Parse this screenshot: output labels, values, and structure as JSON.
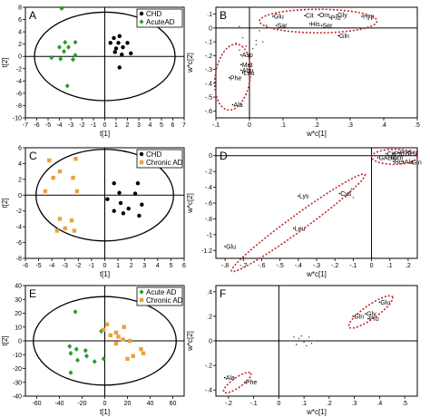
{
  "chart_data": [
    {
      "panel_label": "A",
      "type": "scatter",
      "xlabel": "t[1]",
      "ylabel": "t[2]",
      "xlim": [
        -7,
        7
      ],
      "ylim": [
        -10,
        8
      ],
      "xticks": [
        -7,
        -6,
        -5,
        -4,
        -3,
        -2,
        -1,
        0,
        1,
        2,
        3,
        4,
        5,
        6,
        7
      ],
      "yticks": [
        -10,
        -8,
        -6,
        -4,
        -2,
        0,
        2,
        4,
        6,
        8
      ],
      "ellipse": {
        "rx": 6.2,
        "ry": 7.2
      },
      "legend": "top-right",
      "series": [
        {
          "name": "CHD",
          "marker": "circle",
          "color": "#000000",
          "points": [
            [
              0.8,
              3
            ],
            [
              1.3,
              3.3
            ],
            [
              0.5,
              2.2
            ],
            [
              1.2,
              2.2
            ],
            [
              2,
              2.2
            ],
            [
              1,
              1.3
            ],
            [
              1.6,
              1.5
            ],
            [
              0.9,
              0.7
            ],
            [
              1.5,
              0.3
            ],
            [
              2.3,
              0.5
            ],
            [
              1.3,
              -1.8
            ]
          ]
        },
        {
          "name": "AcuteAD",
          "marker": "diamond",
          "color": "#2e9a2e",
          "points": [
            [
              -3.8,
              7.8
            ],
            [
              -3.5,
              2.3
            ],
            [
              -2.6,
              2.3
            ],
            [
              -4,
              1.5
            ],
            [
              -3.2,
              1.5
            ],
            [
              -3.6,
              0.8
            ],
            [
              -2.6,
              0.2
            ],
            [
              -2.8,
              -0.5
            ],
            [
              -3.9,
              -0.4
            ],
            [
              -4.7,
              -0.2
            ],
            [
              -3.3,
              -4.8
            ]
          ]
        }
      ]
    },
    {
      "panel_label": "B",
      "type": "scatter",
      "xlabel": "w*c[1]",
      "ylabel": "w*c[2]",
      "xlim": [
        -0.1,
        0.5
      ],
      "ylim": [
        -0.65,
        0.15
      ],
      "xticks": [
        -0.1,
        0,
        0.1,
        0.2,
        0.3,
        0.4,
        0.5
      ],
      "yticks": [
        -0.6,
        -0.5,
        -0.4,
        -0.3,
        -0.2,
        -0.1,
        0,
        0.1
      ],
      "labels": [
        {
          "text": "Glu",
          "x": 0.07,
          "y": 0.085
        },
        {
          "text": "Cit",
          "x": 0.165,
          "y": 0.09
        },
        {
          "text": "Orn",
          "x": 0.205,
          "y": 0.095
        },
        {
          "text": "Gly",
          "x": 0.26,
          "y": 0.095
        },
        {
          "text": "Hyp",
          "x": 0.335,
          "y": 0.085
        },
        {
          "text": "Pro",
          "x": 0.24,
          "y": 0.075
        },
        {
          "text": "His",
          "x": 0.18,
          "y": 0.03
        },
        {
          "text": "Sar",
          "x": 0.08,
          "y": 0.018
        },
        {
          "text": "Ser",
          "x": 0.215,
          "y": 0.018
        },
        {
          "text": "Gln",
          "x": 0.265,
          "y": -0.055
        },
        {
          "text": "Asp",
          "x": -0.025,
          "y": -0.195
        },
        {
          "text": "Met",
          "x": -0.025,
          "y": -0.265
        },
        {
          "text": "Abu",
          "x": -0.025,
          "y": -0.305
        },
        {
          "text": "Leu",
          "x": -0.02,
          "y": -0.325
        },
        {
          "text": "Phe",
          "x": -0.06,
          "y": -0.36
        },
        {
          "text": "Ala",
          "x": -0.05,
          "y": -0.555
        }
      ],
      "extra_points": [
        [
          -0.03,
          0.01
        ],
        [
          0.01,
          0.0
        ],
        [
          0.03,
          -0.02
        ],
        [
          0.0,
          -0.05
        ],
        [
          -0.02,
          -0.07
        ],
        [
          0.02,
          -0.09
        ],
        [
          -0.04,
          -0.11
        ],
        [
          -0.01,
          -0.13
        ],
        [
          0.01,
          -0.15
        ],
        [
          -0.03,
          -0.16
        ],
        [
          0.02,
          -0.12
        ],
        [
          0.04,
          -0.1
        ],
        [
          0.05,
          0.02
        ]
      ],
      "ellipses": [
        {
          "cx": 0.205,
          "cy": 0.05,
          "rx": 0.175,
          "ry": 0.085,
          "angle": 0
        },
        {
          "cx": -0.05,
          "cy": -0.355,
          "rx": 0.052,
          "ry": 0.24,
          "angle": 8
        }
      ]
    },
    {
      "panel_label": "C",
      "type": "scatter",
      "xlabel": "t[1]",
      "ylabel": "t[2]",
      "xlim": [
        -6,
        6
      ],
      "ylim": [
        -8,
        6
      ],
      "xticks": [
        -6,
        -5,
        -4,
        -3,
        -2,
        -1,
        0,
        1,
        2,
        3,
        4,
        5,
        6
      ],
      "yticks": [
        -8,
        -6,
        -4,
        -2,
        0,
        2,
        4,
        6
      ],
      "ellipse": {
        "rx": 5.2,
        "ry": 5.8
      },
      "legend": "top-right",
      "series": [
        {
          "name": "CHD",
          "marker": "circle",
          "color": "#000000",
          "points": [
            [
              0.7,
              1.5
            ],
            [
              2.5,
              1.5
            ],
            [
              1.1,
              0.3
            ],
            [
              2.3,
              0.2
            ],
            [
              0.2,
              -0.5
            ],
            [
              1.2,
              -1
            ],
            [
              2.8,
              -1.2
            ],
            [
              1.8,
              -1.7
            ],
            [
              0.7,
              -2
            ],
            [
              1.4,
              -2.3
            ],
            [
              2.6,
              -2.6
            ]
          ]
        },
        {
          "name": "Chronic AD",
          "marker": "square",
          "color": "#e8a33a",
          "points": [
            [
              -4.2,
              4.4
            ],
            [
              -2.2,
              4.6
            ],
            [
              -3.4,
              3
            ],
            [
              -3.9,
              2.2
            ],
            [
              -2.4,
              2.2
            ],
            [
              -4.5,
              0.5
            ],
            [
              -2.1,
              0.5
            ],
            [
              -3.4,
              -3
            ],
            [
              -2.5,
              -3.2
            ],
            [
              -3,
              -4.2
            ],
            [
              -2.3,
              -4.5
            ],
            [
              -3.6,
              -4.5
            ]
          ]
        }
      ]
    },
    {
      "panel_label": "D",
      "type": "scatter",
      "xlabel": "w*c[1]",
      "ylabel": "w*c[2]",
      "xlim": [
        -0.85,
        0.25
      ],
      "ylim": [
        -1.3,
        0.1
      ],
      "xticks": [
        -0.8,
        -0.7,
        -0.6,
        -0.5,
        -0.4,
        -0.3,
        -0.2,
        -0.1,
        0,
        0.1,
        0.2
      ],
      "yticks": [
        -1.2,
        -1,
        -0.8,
        -0.6,
        -0.4,
        -0.2,
        0
      ],
      "labels": [
        {
          "text": "Hyp",
          "x": 0.15,
          "y": 0.04
        },
        {
          "text": "Ser",
          "x": 0.195,
          "y": 0.04
        },
        {
          "text": "Cit",
          "x": 0.08,
          "y": 0.025
        },
        {
          "text": "Pro",
          "x": 0.12,
          "y": 0.025
        },
        {
          "text": "GABA",
          "x": 0.035,
          "y": -0.025
        },
        {
          "text": "Orn",
          "x": 0.11,
          "y": -0.025
        },
        {
          "text": "His",
          "x": 0.12,
          "y": -0.075
        },
        {
          "text": "Ala",
          "x": 0.175,
          "y": -0.075
        },
        {
          "text": "Gln",
          "x": 0.215,
          "y": -0.085
        },
        {
          "text": "Cys",
          "x": -0.175,
          "y": -0.48
        },
        {
          "text": "Lys",
          "x": -0.4,
          "y": -0.51
        },
        {
          "text": "Leu",
          "x": -0.425,
          "y": -0.92
        },
        {
          "text": "Glu",
          "x": -0.8,
          "y": -1.15
        }
      ],
      "extra_points": [
        [
          -0.11,
          -0.42
        ],
        [
          -0.12,
          -0.46
        ],
        [
          -0.13,
          -0.5
        ],
        [
          -0.1,
          -0.53
        ]
      ],
      "ellipses": [
        {
          "cx": 0.125,
          "cy": -0.015,
          "rx": 0.125,
          "ry": 0.095,
          "angle": 0
        },
        {
          "cx": -0.4,
          "cy": -0.85,
          "rx": 0.45,
          "ry": 0.1,
          "angle": -36
        }
      ]
    },
    {
      "panel_label": "E",
      "type": "scatter",
      "xlabel": "t[1]",
      "ylabel": "t[2]",
      "xlim": [
        -70,
        70
      ],
      "ylim": [
        -40,
        40
      ],
      "xticks": [
        -60,
        -40,
        -20,
        0,
        20,
        40,
        60
      ],
      "yticks": [
        -40,
        -30,
        -20,
        -10,
        0,
        10,
        20,
        30,
        40
      ],
      "ellipse": {
        "rx": 63,
        "ry": 32
      },
      "legend": "top-right",
      "series": [
        {
          "name": "Acute AD",
          "marker": "diamond",
          "color": "#2e9a2e",
          "points": [
            [
              -26,
              21
            ],
            [
              -3,
              7
            ],
            [
              -31,
              -4
            ],
            [
              -25,
              -6
            ],
            [
              -17,
              -7
            ],
            [
              -30,
              -9
            ],
            [
              -16,
              -11
            ],
            [
              -24,
              -14
            ],
            [
              -1,
              -13
            ],
            [
              -9,
              -15
            ],
            [
              -30,
              -23
            ]
          ]
        },
        {
          "name": "Chronic AD",
          "marker": "square",
          "color": "#e8a33a",
          "points": [
            [
              2,
              12
            ],
            [
              17,
              10
            ],
            [
              -1,
              8
            ],
            [
              10,
              6
            ],
            [
              5,
              4
            ],
            [
              12,
              3
            ],
            [
              16,
              1
            ],
            [
              22,
              0
            ],
            [
              10,
              -2
            ],
            [
              32,
              -6
            ],
            [
              34,
              -9
            ],
            [
              25,
              -11
            ],
            [
              20,
              -13
            ]
          ]
        }
      ]
    },
    {
      "panel_label": "F",
      "type": "scatter",
      "xlabel": "w*c[1]",
      "ylabel": "w*c[2]",
      "xlim": [
        -0.25,
        0.55
      ],
      "ylim": [
        -0.45,
        0.45
      ],
      "xticks": [
        -0.2,
        -0.1,
        0,
        0.1,
        0.2,
        0.3,
        0.4,
        0.5
      ],
      "yticks": [
        -0.4,
        -0.2,
        0,
        0.2,
        0.4
      ],
      "labels": [
        {
          "text": "Glu",
          "x": 0.4,
          "y": 0.315
        },
        {
          "text": "Gly",
          "x": 0.345,
          "y": 0.22
        },
        {
          "text": "Gln",
          "x": 0.295,
          "y": 0.2
        },
        {
          "text": "Pro",
          "x": 0.355,
          "y": 0.18
        },
        {
          "text": "Ala",
          "x": -0.215,
          "y": -0.3
        },
        {
          "text": "Phe",
          "x": -0.135,
          "y": -0.335
        }
      ],
      "extra_points": [
        [
          0.05,
          0.0
        ],
        [
          0.08,
          0.02
        ],
        [
          0.1,
          -0.01
        ],
        [
          0.12,
          0.03
        ],
        [
          0.07,
          -0.03
        ],
        [
          0.14,
          0.0
        ],
        [
          0.11,
          -0.04
        ],
        [
          0.09,
          0.04
        ],
        [
          0.13,
          -0.02
        ],
        [
          0.06,
          0.03
        ]
      ],
      "ellipses": [
        {
          "cx": 0.365,
          "cy": 0.235,
          "rx": 0.105,
          "ry": 0.055,
          "angle": -35
        },
        {
          "cx": -0.165,
          "cy": -0.34,
          "rx": 0.065,
          "ry": 0.04,
          "angle": -35
        }
      ]
    }
  ]
}
